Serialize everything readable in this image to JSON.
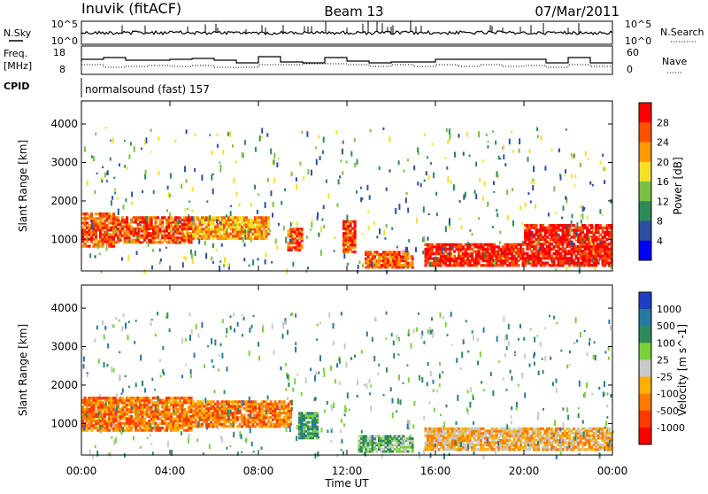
{
  "header": {
    "station": "Inuvik (fitACF)",
    "beam": "Beam 13",
    "date": "07/Mar/2011"
  },
  "summary_panels": {
    "nsky_label": "N.Sky",
    "nsky_ticks": [
      "10^5",
      "10^0"
    ],
    "nsky_right_ticks": [
      "10^5",
      "10^0"
    ],
    "nsearch_label": "N.Search",
    "freq_label": "Freq.",
    "freq_unit": "[MHz]",
    "freq_ticks": [
      "18",
      "8"
    ],
    "nave_label": "Nave",
    "nave_ticks": [
      "60",
      "0"
    ],
    "cpid_label": "CPID",
    "cpid_text": "normalsound (fast) 157"
  },
  "chart_data": [
    {
      "type": "heatmap",
      "panel": "power",
      "ylabel": "Slant Range [km]",
      "ylim": [
        180,
        4600
      ],
      "yticks": [
        "1000",
        "2000",
        "3000",
        "4000"
      ],
      "colorbar_label": "Power [dB]",
      "colorbar_ticks": [
        "4",
        "8",
        "12",
        "16",
        "20",
        "24",
        "28"
      ],
      "colors": [
        "#0000ff",
        "#2e4fa0",
        "#2f8a5a",
        "#79c044",
        "#f5e028",
        "#ff9a00",
        "#ff5000",
        "#ff0000"
      ],
      "regions": [
        {
          "t": [
            0.0,
            1.5
          ],
          "range": [
            800,
            1700
          ],
          "level": 6
        },
        {
          "t": [
            1.5,
            5.0
          ],
          "range": [
            900,
            1600
          ],
          "level": 6
        },
        {
          "t": [
            5.0,
            8.5
          ],
          "range": [
            1000,
            1600
          ],
          "level": 5
        },
        {
          "t": [
            9.3,
            10.0
          ],
          "range": [
            700,
            1300
          ],
          "level": 6
        },
        {
          "t": [
            11.8,
            12.4
          ],
          "range": [
            650,
            1500
          ],
          "level": 6
        },
        {
          "t": [
            12.8,
            15.0
          ],
          "range": [
            250,
            700
          ],
          "level": 6
        },
        {
          "t": [
            15.5,
            20.0
          ],
          "range": [
            300,
            900
          ],
          "level": 7
        },
        {
          "t": [
            20.0,
            24.0
          ],
          "range": [
            300,
            1400
          ],
          "level": 7
        }
      ]
    },
    {
      "type": "heatmap",
      "panel": "velocity",
      "ylabel": "Slant Range [km]",
      "ylim": [
        180,
        4600
      ],
      "yticks": [
        "1000",
        "2000",
        "3000",
        "4000"
      ],
      "colorbar_label": "Velocity [m s^-1]",
      "colorbar_ticks": [
        "1000",
        "500",
        "100",
        "25",
        "-25",
        "-100",
        "-500",
        "-1000"
      ],
      "colors": [
        "#1f3fbf",
        "#2a78a0",
        "#2f8a5a",
        "#7bd13c",
        "#c8c8c8",
        "#ffb000",
        "#ff7a00",
        "#ff3a00",
        "#ff0000"
      ],
      "regions": [
        {
          "t": [
            0.0,
            5.0
          ],
          "range": [
            800,
            1700
          ],
          "level": 6
        },
        {
          "t": [
            5.0,
            9.5
          ],
          "range": [
            900,
            1600
          ],
          "level": 6
        },
        {
          "t": [
            9.8,
            10.7
          ],
          "range": [
            600,
            1300
          ],
          "level": 2
        },
        {
          "t": [
            12.5,
            15.0
          ],
          "range": [
            250,
            700
          ],
          "level": 3
        },
        {
          "t": [
            15.5,
            24.0
          ],
          "range": [
            300,
            900
          ],
          "level": 5
        }
      ]
    }
  ],
  "x_axis": {
    "ticks": [
      "00:00",
      "04:00",
      "08:00",
      "12:00",
      "16:00",
      "20:00",
      "00:00"
    ],
    "title": "Time UT"
  }
}
